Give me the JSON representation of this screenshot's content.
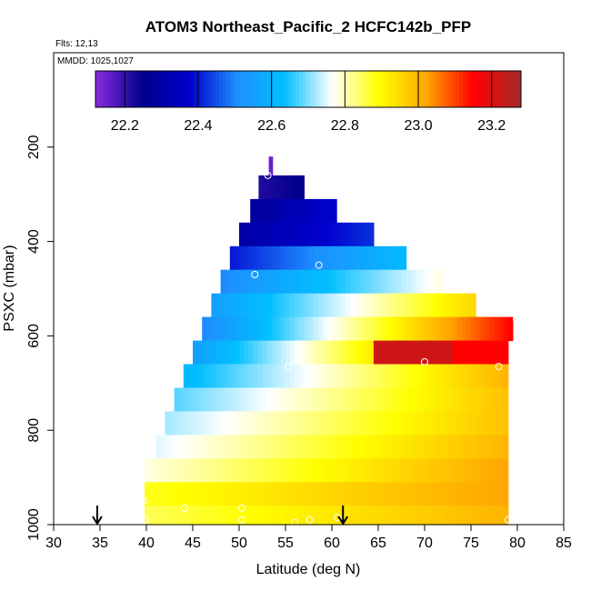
{
  "chart_data": {
    "type": "heatmap",
    "title": "ATOM3 Northeast_Pacific_2 HCFC142b_PFP",
    "note_flights": "Flts: 12,13",
    "note_mmdd": "MMDD: 1025,1027",
    "xlabel": "Latitude (deg N)",
    "ylabel": "PSXC (mbar)",
    "xlim": [
      30,
      85
    ],
    "ylim": [
      1000,
      0
    ],
    "x_ticks": [
      "30",
      "35",
      "40",
      "45",
      "50",
      "55",
      "60",
      "65",
      "70",
      "75",
      "80",
      "85"
    ],
    "y_ticks": [
      "200",
      "400",
      "600",
      "800",
      "1000"
    ],
    "colorbar": {
      "range": [
        22.12,
        23.28
      ],
      "ticks": [
        "22.2",
        "22.4",
        "22.6",
        "22.8",
        "23.0",
        "23.2"
      ],
      "tick_values": [
        22.2,
        22.4,
        22.6,
        22.8,
        23.0,
        23.2
      ],
      "colors": [
        "#8a2be2",
        "#00008b",
        "#0000cd",
        "#1e90ff",
        "#00bfff",
        "#ffffff",
        "#ffff00",
        "#ffa500",
        "#ff0000",
        "#a52a2a"
      ]
    },
    "grid": false,
    "rows": [
      {
        "p_top": 220,
        "p_bot": 260,
        "lat_start": 53.2,
        "lat_end": 53.6,
        "v_start": 22.15,
        "v_end": 22.15
      },
      {
        "p_top": 260,
        "p_bot": 310,
        "lat_start": 52.1,
        "lat_end": 57.0,
        "v_start": 22.22,
        "v_end": 22.25
      },
      {
        "p_top": 310,
        "p_bot": 360,
        "lat_start": 51.2,
        "lat_end": 60.5,
        "v_start": 22.28,
        "v_end": 22.38
      },
      {
        "p_top": 360,
        "p_bot": 410,
        "lat_start": 50.0,
        "lat_end": 64.5,
        "v_start": 22.3,
        "v_end": 22.42
      },
      {
        "p_top": 410,
        "p_bot": 460,
        "lat_start": 49.0,
        "lat_end": 68.0,
        "v_start": 22.4,
        "v_end": 22.62
      },
      {
        "p_top": 460,
        "p_bot": 510,
        "lat_start": 48.0,
        "lat_end": 72.0,
        "v_start": 22.5,
        "v_end": 22.78
      },
      {
        "p_top": 510,
        "p_bot": 560,
        "lat_start": 47.0,
        "lat_end": 75.5,
        "v_start": 22.55,
        "v_end": 22.95
      },
      {
        "p_top": 560,
        "p_bot": 610,
        "lat_start": 46.0,
        "lat_end": 79.5,
        "v_start": 22.5,
        "v_end": 23.15
      },
      {
        "p_top": 610,
        "p_bot": 660,
        "lat_start": 45.0,
        "lat_end": 79.0,
        "v_start": 22.55,
        "v_end": 23.2
      },
      {
        "p_top": 660,
        "p_bot": 710,
        "lat_start": 44.0,
        "lat_end": 79.0,
        "v_start": 22.62,
        "v_end": 23.0
      },
      {
        "p_top": 710,
        "p_bot": 760,
        "lat_start": 43.0,
        "lat_end": 79.0,
        "v_start": 22.68,
        "v_end": 22.98
      },
      {
        "p_top": 760,
        "p_bot": 810,
        "lat_start": 42.0,
        "lat_end": 79.0,
        "v_start": 22.72,
        "v_end": 22.98
      },
      {
        "p_top": 810,
        "p_bot": 860,
        "lat_start": 41.0,
        "lat_end": 79.0,
        "v_start": 22.75,
        "v_end": 23.0
      },
      {
        "p_top": 860,
        "p_bot": 910,
        "lat_start": 39.8,
        "lat_end": 79.0,
        "v_start": 22.78,
        "v_end": 23.02
      },
      {
        "p_top": 910,
        "p_bot": 960,
        "lat_start": 39.8,
        "lat_end": 79.0,
        "v_start": 22.88,
        "v_end": 23.02
      },
      {
        "p_top": 960,
        "p_bot": 1000,
        "lat_start": 39.8,
        "lat_end": 79.0,
        "v_start": 22.85,
        "v_end": 23.0
      }
    ],
    "samples": [
      {
        "lat": 53.1,
        "p": 260
      },
      {
        "lat": 58.6,
        "p": 450
      },
      {
        "lat": 51.7,
        "p": 470
      },
      {
        "lat": 55.3,
        "p": 665
      },
      {
        "lat": 70.0,
        "p": 655
      },
      {
        "lat": 78.0,
        "p": 665
      },
      {
        "lat": 79.9,
        "p": 565
      },
      {
        "lat": 39.7,
        "p": 950
      },
      {
        "lat": 44.1,
        "p": 965
      },
      {
        "lat": 50.3,
        "p": 965
      },
      {
        "lat": 39.9,
        "p": 990
      },
      {
        "lat": 50.3,
        "p": 990
      },
      {
        "lat": 56.0,
        "p": 995
      },
      {
        "lat": 57.6,
        "p": 990
      },
      {
        "lat": 60.6,
        "p": 985
      },
      {
        "lat": 79.0,
        "p": 990
      }
    ],
    "arrows": [
      34.7,
      61.2
    ]
  }
}
